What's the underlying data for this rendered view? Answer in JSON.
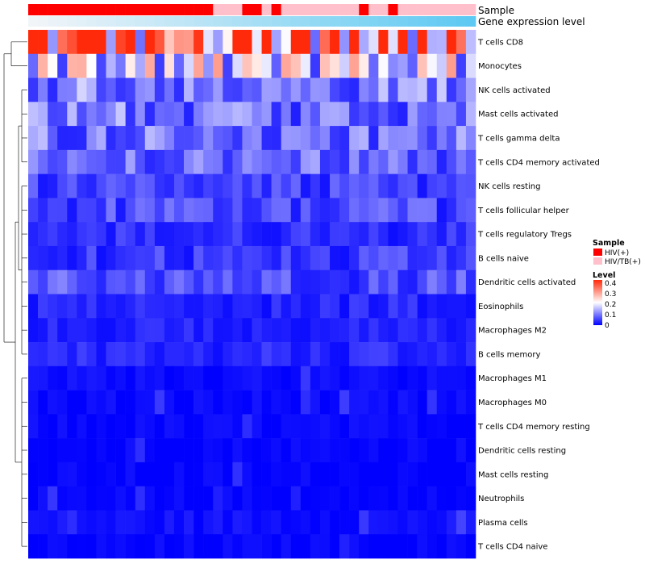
{
  "chart_data": {
    "type": "heatmap",
    "title": "",
    "annotation_tracks": [
      {
        "name": "Sample",
        "values": [
          "HIV(+)",
          "HIV(+)",
          "HIV(+)",
          "HIV(+)",
          "HIV(+)",
          "HIV(+)",
          "HIV(+)",
          "HIV(+)",
          "HIV(+)",
          "HIV(+)",
          "HIV(+)",
          "HIV(+)",
          "HIV(+)",
          "HIV(+)",
          "HIV(+)",
          "HIV(+)",
          "HIV(+)",
          "HIV(+)",
          "HIV(+)",
          "HIV/TB(+)",
          "HIV/TB(+)",
          "HIV/TB(+)",
          "HIV(+)",
          "HIV(+)",
          "HIV/TB(+)",
          "HIV(+)",
          "HIV/TB(+)",
          "HIV/TB(+)",
          "HIV/TB(+)",
          "HIV/TB(+)",
          "HIV/TB(+)",
          "HIV/TB(+)",
          "HIV/TB(+)",
          "HIV/TB(+)",
          "HIV(+)",
          "HIV/TB(+)",
          "HIV/TB(+)",
          "HIV(+)",
          "HIV/TB(+)",
          "HIV/TB(+)",
          "HIV/TB(+)",
          "HIV/TB(+)",
          "HIV/TB(+)",
          "HIV/TB(+)",
          "HIV/TB(+)",
          "HIV/TB(+)"
        ]
      },
      {
        "name": "Gene expression level",
        "gradient": [
          "#f2f5f8",
          "#5ec9f2"
        ]
      }
    ],
    "rows": [
      "T cells CD8",
      "Monocytes",
      "NK cells activated",
      "Mast cells activated",
      "T cells gamma delta",
      "T cells CD4 memory activated",
      "NK cells resting",
      "T cells follicular helper",
      "T cells regulatory  Tregs",
      "B cells naive",
      "Dendritic cells activated",
      "Eosinophils",
      "Macrophages M2",
      "B cells memory",
      "Macrophages M1",
      "Macrophages M0",
      "T cells CD4 memory resting",
      "Dendritic cells resting",
      "Mast cells resting",
      "Neutrophils",
      "Plasma cells",
      "T cells CD4 naive"
    ],
    "row_base_levels": [
      0.33,
      0.17,
      0.095,
      0.09,
      0.085,
      0.075,
      0.05,
      0.055,
      0.035,
      0.045,
      0.06,
      0.03,
      0.025,
      0.03,
      0.008,
      0.006,
      0.004,
      0.004,
      0.002,
      0.001,
      0.012,
      0.002
    ],
    "n_samples": 46,
    "color_scale": {
      "min": 0,
      "max": 0.4,
      "colors": [
        "#0000ff",
        "#ffffff",
        "#ff2a0a"
      ]
    },
    "legend": {
      "sample_title": "Sample",
      "sample_entries": [
        {
          "label": "HIV(+)",
          "color": "#ff0000"
        },
        {
          "label": "HIV/TB(+)",
          "color": "#ffc0cb"
        }
      ],
      "level_title": "Level",
      "level_ticks": [
        "0.4",
        "0.3",
        "0.2",
        "0.1",
        "0"
      ],
      "position": "right"
    }
  }
}
